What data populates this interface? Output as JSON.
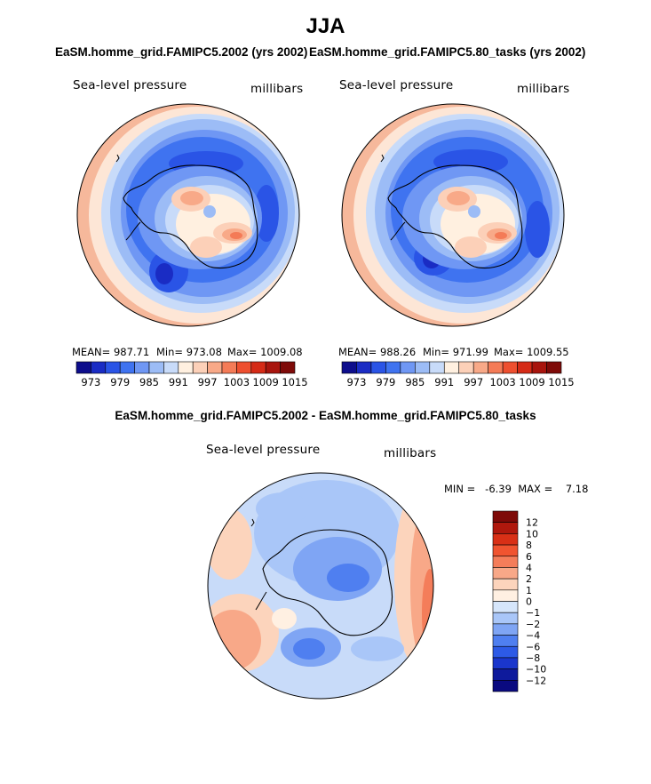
{
  "figure": {
    "title": "JJA",
    "units": "millibars",
    "variable": "Sea-level pressure"
  },
  "panels": {
    "left": {
      "subtitle": "EaSM.homme_grid.FAMIPC5.2002 (yrs 2002)",
      "label": "Sea-level pressure",
      "units": "millibars",
      "stats": {
        "mean_text": "MEAN= 987.71",
        "min_text": "Min= 973.08",
        "max_text": "Max= 1009.08"
      }
    },
    "right": {
      "subtitle": "EaSM.homme_grid.FAMIPC5.80_tasks (yrs 2002)",
      "label": "Sea-level pressure",
      "units": "millibars",
      "stats": {
        "mean_text": "MEAN= 988.26",
        "min_text": "Min= 971.99",
        "max_text": "Max= 1009.55"
      }
    },
    "diff": {
      "subtitle": "EaSM.homme_grid.FAMIPC5.2002 - EaSM.homme_grid.FAMIPC5.80_tasks",
      "label": "Sea-level pressure",
      "units": "millibars",
      "stats_text": "MIN =   -6.39  MAX =    7.18"
    }
  },
  "colorbars": {
    "absolute": {
      "tick_labels": [
        "973",
        "979",
        "985",
        "991",
        "997",
        "1003",
        "1009",
        "1015"
      ],
      "colors": [
        "#0d0d8c",
        "#1a2cc4",
        "#2a54e6",
        "#3f73f0",
        "#6f97f4",
        "#9cbcf6",
        "#c8dbf9",
        "#fff0e0",
        "#fcd0b8",
        "#f8a988",
        "#f47b57",
        "#ee4f2f",
        "#d52a16",
        "#a8140d",
        "#7e0a08"
      ]
    },
    "difference": {
      "tick_labels": [
        "12",
        "10",
        "8",
        "6",
        "4",
        "2",
        "1",
        "0",
        "−1",
        "−2",
        "−4",
        "−6",
        "−8",
        "−10",
        "−12"
      ],
      "colors": [
        "#7e0a08",
        "#b0180d",
        "#d93016",
        "#f05430",
        "#f47d5a",
        "#f8a888",
        "#fcd4bc",
        "#fff0e2",
        "#d6e6fb",
        "#a9c6f8",
        "#7fa5f4",
        "#4f7ff0",
        "#2d5ae6",
        "#1a36cc",
        "#0e1a9c",
        "#0a0a80"
      ]
    }
  },
  "chart_data": [
    {
      "type": "heatmap",
      "title": "EaSM.homme_grid.FAMIPC5.2002 (yrs 2002)",
      "projection": "south-polar-stereographic",
      "variable": "Sea-level pressure",
      "units": "millibars",
      "stats": {
        "mean": 987.71,
        "min": 973.08,
        "max": 1009.08
      },
      "levels": [
        973,
        976,
        979,
        982,
        985,
        988,
        991,
        994,
        997,
        1000,
        1003,
        1006,
        1009,
        1012,
        1015
      ]
    },
    {
      "type": "heatmap",
      "title": "EaSM.homme_grid.FAMIPC5.80_tasks (yrs 2002)",
      "projection": "south-polar-stereographic",
      "variable": "Sea-level pressure",
      "units": "millibars",
      "stats": {
        "mean": 988.26,
        "min": 971.99,
        "max": 1009.55
      },
      "levels": [
        973,
        976,
        979,
        982,
        985,
        988,
        991,
        994,
        997,
        1000,
        1003,
        1006,
        1009,
        1012,
        1015
      ]
    },
    {
      "type": "heatmap",
      "title": "EaSM.homme_grid.FAMIPC5.2002 - EaSM.homme_grid.FAMIPC5.80_tasks",
      "projection": "south-polar-stereographic",
      "variable": "Sea-level pressure",
      "units": "millibars",
      "stats": {
        "min": -6.39,
        "max": 7.18
      },
      "levels": [
        -12,
        -10,
        -8,
        -6,
        -4,
        -2,
        -1,
        0,
        1,
        2,
        4,
        6,
        8,
        10,
        12
      ]
    }
  ]
}
